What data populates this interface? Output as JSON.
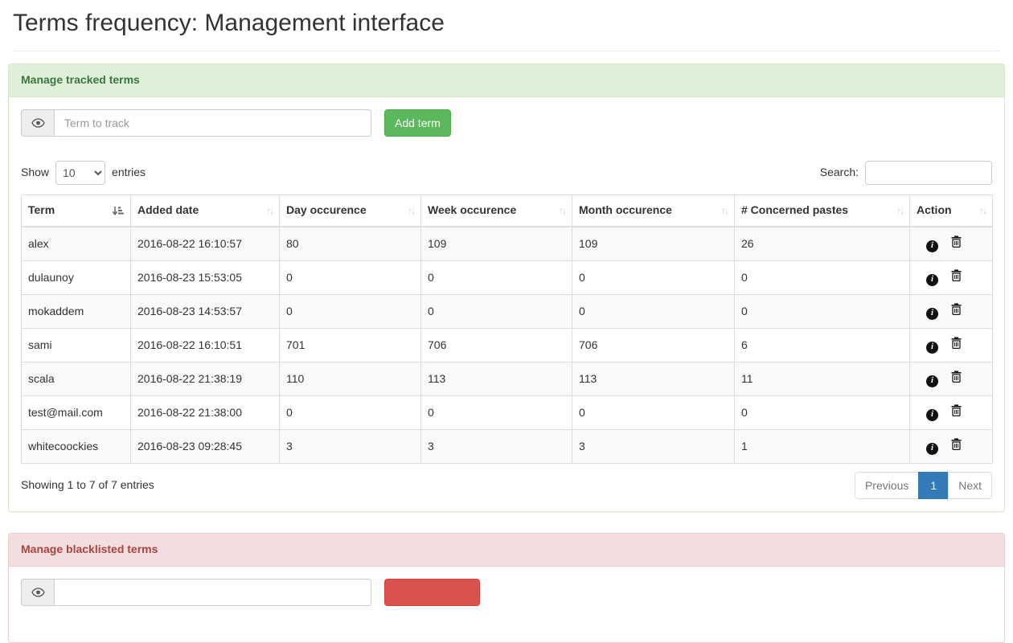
{
  "page": {
    "title": "Terms frequency: Management interface"
  },
  "tracked": {
    "panel_title": "Manage tracked terms",
    "term_input": {
      "placeholder": "Term to track",
      "value": ""
    },
    "add_button": "Add term",
    "show_label": "Show",
    "page_length": "10",
    "entries_label": "entries",
    "search_label": "Search:",
    "search_value": "",
    "table": {
      "columns": [
        {
          "label": "Term",
          "sorted": "asc"
        },
        {
          "label": "Added date",
          "sorted": "none"
        },
        {
          "label": "Day occurence",
          "sorted": "none"
        },
        {
          "label": "Week occurence",
          "sorted": "none"
        },
        {
          "label": "Month occurence",
          "sorted": "none"
        },
        {
          "label": "# Concerned pastes",
          "sorted": "none"
        },
        {
          "label": "Action",
          "sorted": "none"
        }
      ],
      "rows": [
        {
          "term": "alex",
          "added_date": "2016-08-22 16:10:57",
          "day": "80",
          "week": "109",
          "month": "109",
          "pastes": "26"
        },
        {
          "term": "dulaunoy",
          "added_date": "2016-08-23 15:53:05",
          "day": "0",
          "week": "0",
          "month": "0",
          "pastes": "0"
        },
        {
          "term": "mokaddem",
          "added_date": "2016-08-23 14:53:57",
          "day": "0",
          "week": "0",
          "month": "0",
          "pastes": "0"
        },
        {
          "term": "sami",
          "added_date": "2016-08-22 16:10:51",
          "day": "701",
          "week": "706",
          "month": "706",
          "pastes": "6"
        },
        {
          "term": "scala",
          "added_date": "2016-08-22 21:38:19",
          "day": "110",
          "week": "113",
          "month": "113",
          "pastes": "11"
        },
        {
          "term": "test@mail.com",
          "added_date": "2016-08-22 21:38:00",
          "day": "0",
          "week": "0",
          "month": "0",
          "pastes": "0"
        },
        {
          "term": "whitecoockies",
          "added_date": "2016-08-23 09:28:45",
          "day": "3",
          "week": "3",
          "month": "3",
          "pastes": "1"
        }
      ],
      "actions": [
        "info",
        "delete"
      ]
    },
    "info_text": "Showing 1 to 7 of 7 entries",
    "pagination": {
      "previous": "Previous",
      "current_page": "1",
      "next": "Next"
    }
  },
  "blacklist": {
    "panel_title": "Manage blacklisted terms",
    "term_input": {
      "placeholder": "",
      "value": ""
    },
    "add_button": ""
  },
  "colors": {
    "success_heading_bg": "#dff0d8",
    "success_border": "#d6e9c6",
    "success_text": "#3c763d",
    "danger_heading_bg": "#f2dede",
    "danger_border": "#ebccd1",
    "danger_text": "#a94442",
    "btn_success": "#5cb85c",
    "btn_danger": "#d9534f",
    "pagination_active": "#337ab7",
    "table_border": "#ddd",
    "stripe_row": "#f9f9f9"
  }
}
